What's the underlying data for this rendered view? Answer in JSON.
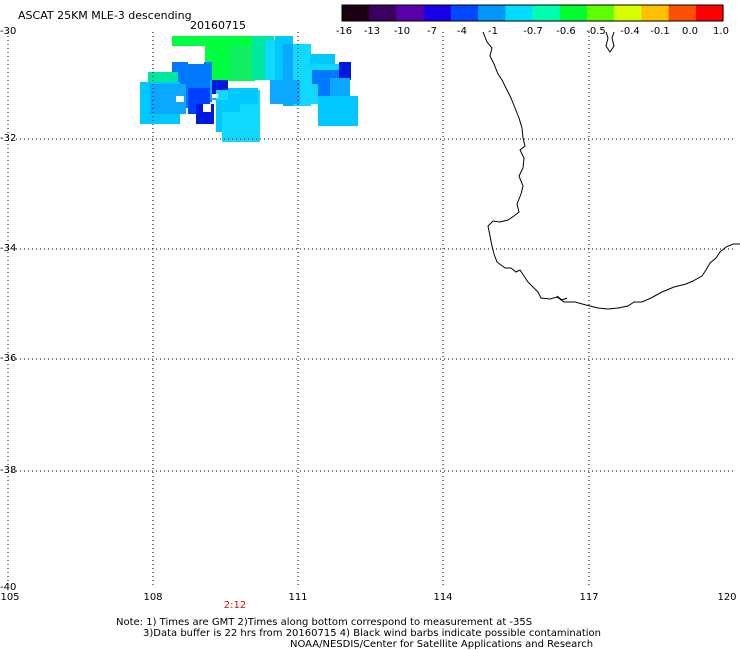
{
  "title": "ASCAT 25KM MLE-3 descending",
  "date": "20160715",
  "colorbar": {
    "ticks": [
      "-16",
      "-13",
      "-10",
      "-7",
      "-4",
      "-1",
      "-0.7",
      "-0.6",
      "-0.5",
      "-0.4",
      "-0.1",
      "0.0",
      "1.0"
    ],
    "colors": [
      "#1a0010",
      "#3a0060",
      "#5a00a8",
      "#1800e8",
      "#0048ff",
      "#0096ff",
      "#00dcff",
      "#00ffb0",
      "#00ff30",
      "#60ff00",
      "#d8ff00",
      "#ffc000",
      "#ff5000",
      "#ff0000"
    ]
  },
  "axes": {
    "lat_labels": [
      "-30",
      "-32",
      "-34",
      "-36",
      "-38",
      "-40"
    ],
    "lon_labels": [
      "105",
      "108",
      "111",
      "114",
      "117",
      "120"
    ]
  },
  "time_label": "2:12",
  "notes": [
    "Note: 1) Times are GMT 2)Times along bottom correspond to measurement at -35S",
    "3)Data buffer is 22 hrs from 20160715 4) Black wind barbs indicate possible contamination",
    "NOAA/NESDIS/Center for Satellite Applications and Research"
  ],
  "swath_colors": {
    "green": "#00ff40",
    "green2": "#10f060",
    "teal": "#00e8a0",
    "aqua": "#10d8ff",
    "cyan": "#00c8ff",
    "sky": "#0aa8ff",
    "blue": "#0078ff",
    "deep": "#0040ff",
    "navy": "#0018e0"
  }
}
